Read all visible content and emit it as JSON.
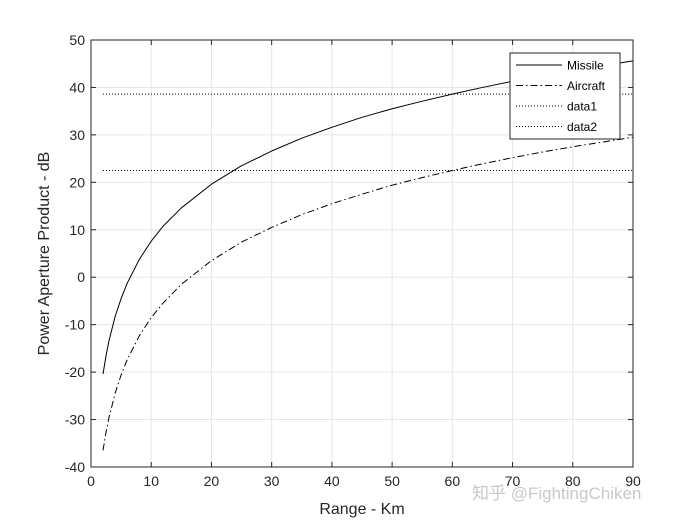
{
  "chart_data": {
    "type": "line",
    "xlabel": "Range - Km",
    "ylabel": "Power Aperture Product - dB",
    "xlim": [
      0,
      90
    ],
    "ylim": [
      -40,
      50
    ],
    "x_ticks": [
      0,
      10,
      20,
      30,
      40,
      50,
      60,
      70,
      80,
      90
    ],
    "y_ticks": [
      -40,
      -30,
      -20,
      -10,
      0,
      10,
      20,
      30,
      40,
      50
    ],
    "grid": true,
    "legend_position": "top-right",
    "series": [
      {
        "name": "Missile",
        "style": "solid",
        "x": [
          2,
          2.5,
          3,
          4,
          5,
          6,
          8,
          10,
          12,
          15,
          20,
          25,
          30,
          35,
          40,
          45,
          50,
          55,
          60,
          65,
          70,
          75,
          80,
          85,
          90
        ],
        "y": [
          -20.4,
          -16.5,
          -13.3,
          -8.3,
          -4.5,
          -1.3,
          3.7,
          7.6,
          10.8,
          14.6,
          19.6,
          23.5,
          26.6,
          29.3,
          31.6,
          33.7,
          35.5,
          37.1,
          38.6,
          40.0,
          41.3,
          42.5,
          43.6,
          44.6,
          45.6
        ]
      },
      {
        "name": "Aircraft",
        "style": "dashdot",
        "x": [
          2,
          2.5,
          3,
          4,
          5,
          6,
          8,
          10,
          12,
          15,
          20,
          25,
          30,
          35,
          40,
          45,
          50,
          55,
          60,
          65,
          70,
          75,
          80,
          85,
          90
        ],
        "y": [
          -36.5,
          -32.6,
          -29.5,
          -24.5,
          -20.6,
          -17.4,
          -12.4,
          -8.5,
          -5.4,
          -1.5,
          3.5,
          7.4,
          10.5,
          13.2,
          15.5,
          17.5,
          19.4,
          21.0,
          22.5,
          23.9,
          25.2,
          26.4,
          27.5,
          28.5,
          29.5
        ]
      },
      {
        "name": "data1",
        "style": "dotted",
        "x": [
          2,
          90
        ],
        "y": [
          38.6,
          38.6
        ]
      },
      {
        "name": "data2",
        "style": "dotted",
        "x": [
          2,
          90
        ],
        "y": [
          22.5,
          22.5
        ]
      }
    ]
  },
  "watermark": "知乎 @FightingChiken"
}
